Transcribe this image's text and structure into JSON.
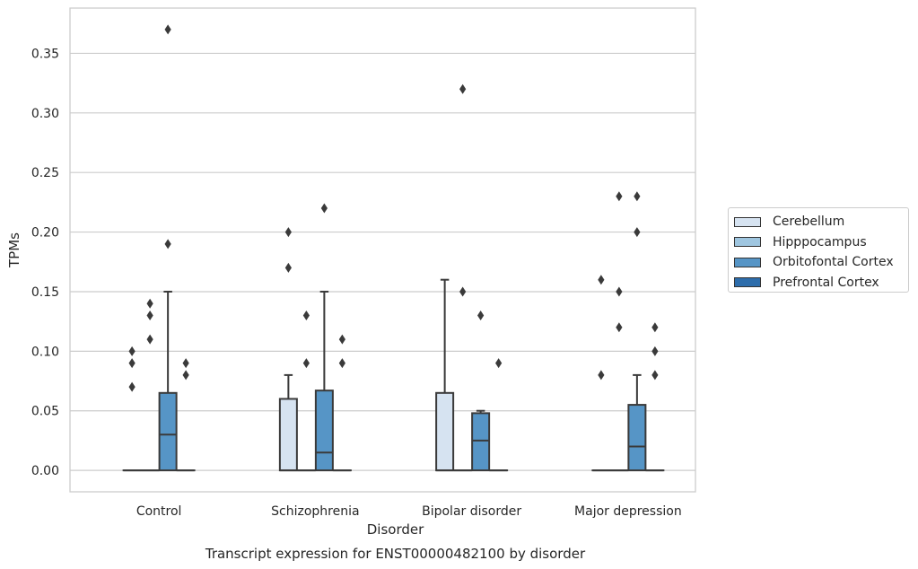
{
  "chart_data": {
    "type": "box",
    "title": "Transcript expression for ENST00000482100 by disorder",
    "xlabel": "Disorder",
    "ylabel": "TPMs",
    "ylim": [
      -0.018,
      0.388
    ],
    "yticks": [
      "0.00",
      "0.05",
      "0.10",
      "0.15",
      "0.20",
      "0.25",
      "0.30",
      "0.35"
    ],
    "grid": "horizontal",
    "legend_position": "right",
    "categories": [
      "Control",
      "Schizophrenia",
      "Bipolar disorder",
      "Major depression"
    ],
    "series": [
      {
        "name": "Cerebellum",
        "color": "#d6e3f1"
      },
      {
        "name": "Hipppocampus",
        "color": "#9fc6e0"
      },
      {
        "name": "Orbitofontal Cortex",
        "color": "#5695c6"
      },
      {
        "name": "Prefrontal Cortex",
        "color": "#2d6dab"
      }
    ],
    "boxes": [
      [
        {
          "q1": 0,
          "median": 0,
          "q3": 0,
          "whislo": 0,
          "whishi": 0,
          "fliers": [
            0.07,
            0.09,
            0.1
          ]
        },
        {
          "q1": 0,
          "median": 0,
          "q3": 0,
          "whislo": 0,
          "whishi": 0,
          "fliers": [
            0.11,
            0.13,
            0.14
          ]
        },
        {
          "q1": 0,
          "median": 0.03,
          "q3": 0.065,
          "whislo": 0,
          "whishi": 0.15,
          "fliers": [
            0.19,
            0.37
          ]
        },
        {
          "q1": 0,
          "median": 0,
          "q3": 0,
          "whislo": 0,
          "whishi": 0,
          "fliers": [
            0.08,
            0.09
          ]
        }
      ],
      [
        {
          "q1": 0,
          "median": 0,
          "q3": 0.06,
          "whislo": 0,
          "whishi": 0.08,
          "fliers": [
            0.17,
            0.2
          ]
        },
        {
          "q1": 0,
          "median": 0,
          "q3": 0,
          "whislo": 0,
          "whishi": 0,
          "fliers": [
            0.09,
            0.13
          ]
        },
        {
          "q1": 0,
          "median": 0.015,
          "q3": 0.067,
          "whislo": 0,
          "whishi": 0.15,
          "fliers": [
            0.22
          ]
        },
        {
          "q1": 0,
          "median": 0,
          "q3": 0,
          "whislo": 0,
          "whishi": 0,
          "fliers": [
            0.09,
            0.11
          ]
        }
      ],
      [
        {
          "q1": 0,
          "median": 0,
          "q3": 0.065,
          "whislo": 0,
          "whishi": 0.16,
          "fliers": []
        },
        {
          "q1": 0,
          "median": 0,
          "q3": 0,
          "whislo": 0,
          "whishi": 0,
          "fliers": [
            0.15,
            0.32
          ]
        },
        {
          "q1": 0,
          "median": 0.025,
          "q3": 0.048,
          "whislo": 0,
          "whishi": 0.05,
          "fliers": [
            0.13
          ]
        },
        {
          "q1": 0,
          "median": 0,
          "q3": 0,
          "whislo": 0,
          "whishi": 0,
          "fliers": [
            0.09
          ]
        }
      ],
      [
        {
          "q1": 0,
          "median": 0,
          "q3": 0,
          "whislo": 0,
          "whishi": 0,
          "fliers": [
            0.08,
            0.16
          ]
        },
        {
          "q1": 0,
          "median": 0,
          "q3": 0,
          "whislo": 0,
          "whishi": 0,
          "fliers": [
            0.12,
            0.15,
            0.23
          ]
        },
        {
          "q1": 0,
          "median": 0.02,
          "q3": 0.055,
          "whislo": 0,
          "whishi": 0.08,
          "fliers": [
            0.2,
            0.23
          ]
        },
        {
          "q1": 0,
          "median": 0,
          "q3": 0,
          "whislo": 0,
          "whishi": 0,
          "fliers": [
            0.08,
            0.1,
            0.12
          ]
        }
      ]
    ]
  }
}
